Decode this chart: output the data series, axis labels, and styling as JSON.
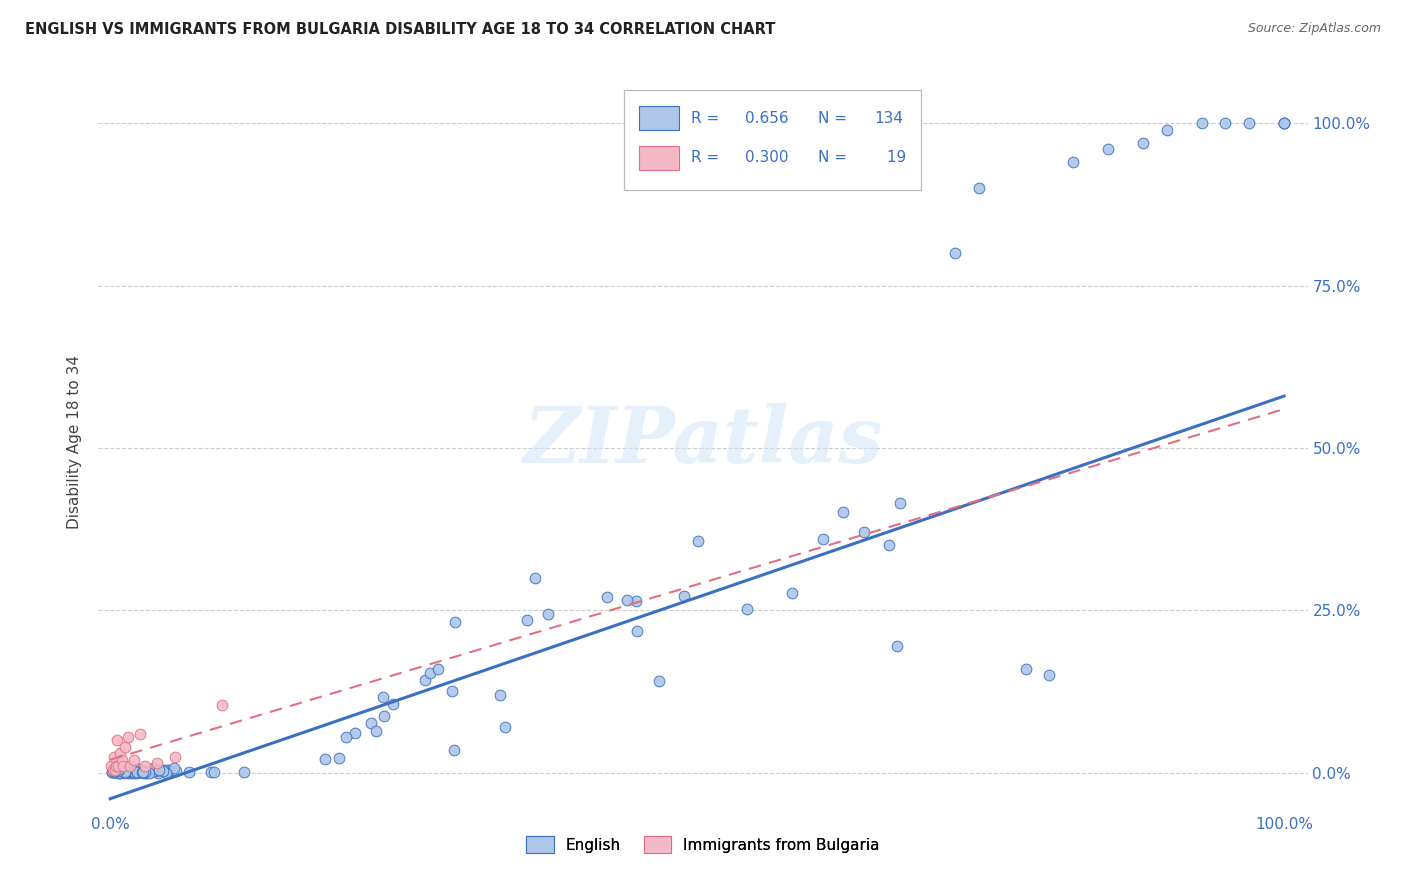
{
  "title": "ENGLISH VS IMMIGRANTS FROM BULGARIA DISABILITY AGE 18 TO 34 CORRELATION CHART",
  "source": "Source: ZipAtlas.com",
  "ylabel": "Disability Age 18 to 34",
  "legend_label1": "English",
  "legend_label2": "Immigrants from Bulgaria",
  "R1": "0.656",
  "N1": "134",
  "R2": "0.300",
  "N2": "19",
  "watermark": "ZIPatlas",
  "color_english": "#aec6e8",
  "color_bulgaria": "#f4b8c8",
  "line_color_english": "#3a6fc4",
  "line_color_bulgaria": "#e07080",
  "background_color": "#ffffff",
  "grid_color": "#cccccc",
  "eng_line_x0": 0.0,
  "eng_line_y0": -0.04,
  "eng_line_x1": 1.0,
  "eng_line_y1": 0.58,
  "bul_line_x0": 0.0,
  "bul_line_y0": 0.02,
  "bul_line_x1": 1.0,
  "bul_line_y1": 0.56,
  "xlim_min": -0.01,
  "xlim_max": 1.02,
  "ylim_min": -0.06,
  "ylim_max": 1.08
}
